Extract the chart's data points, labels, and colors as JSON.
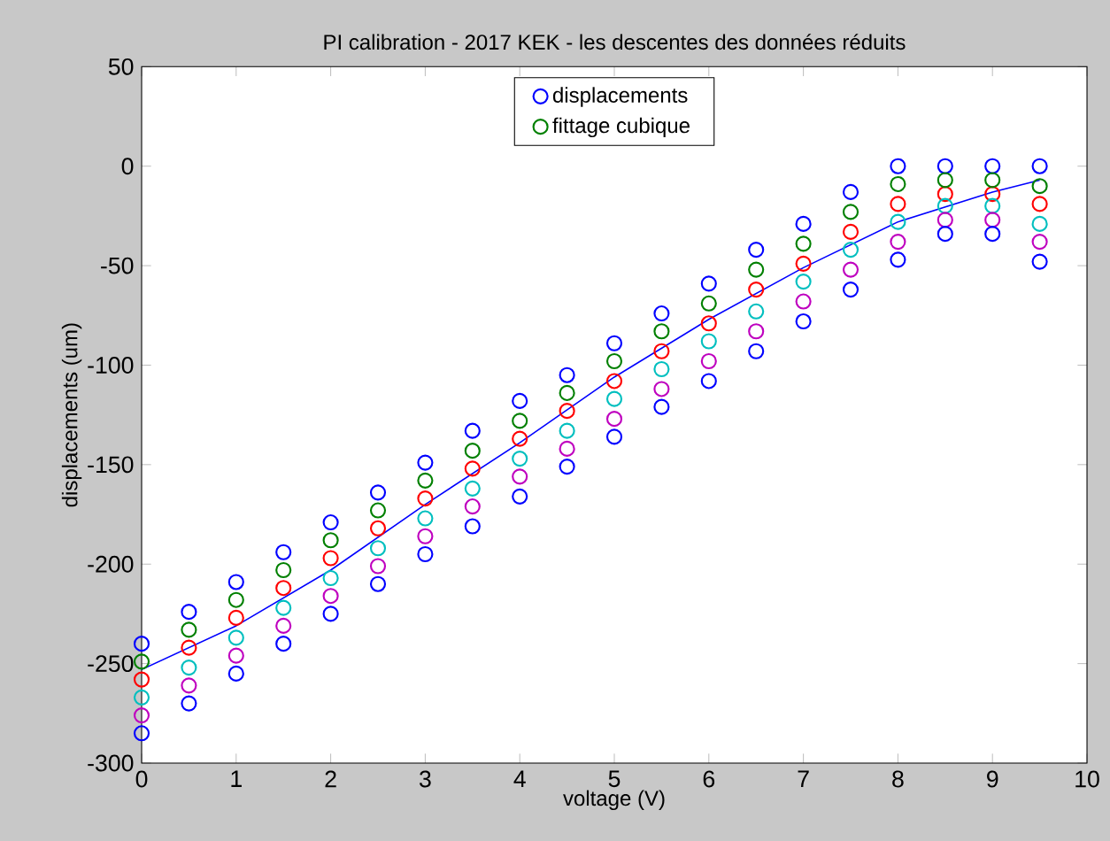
{
  "chart_data": {
    "type": "scatter",
    "title": "PI calibration - 2017 KEK - les descentes des données réduits",
    "xlabel": "voltage (V)",
    "ylabel": "displacements (um)",
    "xlim": [
      0,
      10
    ],
    "ylim": [
      -300,
      50
    ],
    "xticks": [
      0,
      1,
      2,
      3,
      4,
      5,
      6,
      7,
      8,
      9,
      10
    ],
    "yticks": [
      -300,
      -250,
      -200,
      -150,
      -100,
      -50,
      0,
      50
    ],
    "legend": "top",
    "marker": "circle",
    "grid": false,
    "series": [
      {
        "name": "displacements",
        "color": "#0000ff",
        "x": [
          0,
          0.5,
          1,
          1.5,
          2,
          2.5,
          3,
          3.5,
          4,
          4.5,
          5,
          5.5,
          6,
          6.5,
          7,
          7.5,
          8,
          8.5,
          9,
          9.5,
          0,
          0.5,
          1,
          1.5,
          2,
          2.5,
          3,
          3.5,
          4,
          4.5,
          5,
          5.5,
          6,
          6.5,
          7,
          7.5,
          8,
          8.5,
          9,
          9.5
        ],
        "values": [
          -240,
          -224,
          -209,
          -194,
          -179,
          -164,
          -149,
          -133,
          -118,
          -105,
          -89,
          -74,
          -59,
          -42,
          -29,
          -13,
          0,
          0,
          0,
          0,
          -285,
          -270,
          -255,
          -240,
          -225,
          -210,
          -195,
          -181,
          -166,
          -151,
          -136,
          -121,
          -108,
          -93,
          -78,
          -62,
          -47,
          -34,
          -34,
          -48
        ]
      },
      {
        "name": "fittage cubique",
        "color": "#008000",
        "x": [
          0,
          0.5,
          1,
          1.5,
          2,
          2.5,
          3,
          3.5,
          4,
          4.5,
          5,
          5.5,
          6,
          6.5,
          7,
          7.5,
          8,
          8.5,
          9,
          9.5
        ],
        "values": [
          -249,
          -233,
          -218,
          -203,
          -188,
          -173,
          -158,
          -143,
          -128,
          -114,
          -98,
          -83,
          -69,
          -52,
          -39,
          -23,
          -9,
          -7,
          -7,
          -10
        ]
      },
      {
        "color": "#ff0000",
        "x": [
          0,
          0.5,
          1,
          1.5,
          2,
          2.5,
          3,
          3.5,
          4,
          4.5,
          5,
          5.5,
          6,
          6.5,
          7,
          7.5,
          8,
          8.5,
          9,
          9.5
        ],
        "values": [
          -258,
          -242,
          -227,
          -212,
          -197,
          -182,
          -167,
          -152,
          -137,
          -123,
          -108,
          -93,
          -79,
          -62,
          -49,
          -33,
          -19,
          -14,
          -14,
          -19
        ]
      },
      {
        "color": "#00bfbf",
        "x": [
          0,
          0.5,
          1,
          1.5,
          2,
          2.5,
          3,
          3.5,
          4,
          4.5,
          5,
          5.5,
          6,
          6.5,
          7,
          7.5,
          8,
          8.5,
          9,
          9.5
        ],
        "values": [
          -267,
          -252,
          -237,
          -222,
          -207,
          -192,
          -177,
          -162,
          -147,
          -133,
          -117,
          -102,
          -88,
          -73,
          -58,
          -42,
          -28,
          -20,
          -20,
          -29
        ]
      },
      {
        "color": "#bf00bf",
        "x": [
          0,
          0.5,
          1,
          1.5,
          2,
          2.5,
          3,
          3.5,
          4,
          4.5,
          5,
          5.5,
          6,
          6.5,
          7,
          7.5,
          8,
          8.5,
          9,
          9.5
        ],
        "values": [
          -276,
          -261,
          -246,
          -231,
          -216,
          -201,
          -186,
          -171,
          -156,
          -142,
          -127,
          -112,
          -98,
          -83,
          -68,
          -52,
          -38,
          -27,
          -27,
          -38
        ]
      },
      {
        "type": "line",
        "marker": "none",
        "color": "#0000ff",
        "x": [
          0,
          1,
          2,
          3,
          4,
          5,
          6,
          7,
          8,
          9,
          9.5
        ],
        "values": [
          -253,
          -231,
          -203,
          -170,
          -139,
          -106,
          -77,
          -51,
          -28,
          -13,
          -7
        ]
      }
    ]
  }
}
